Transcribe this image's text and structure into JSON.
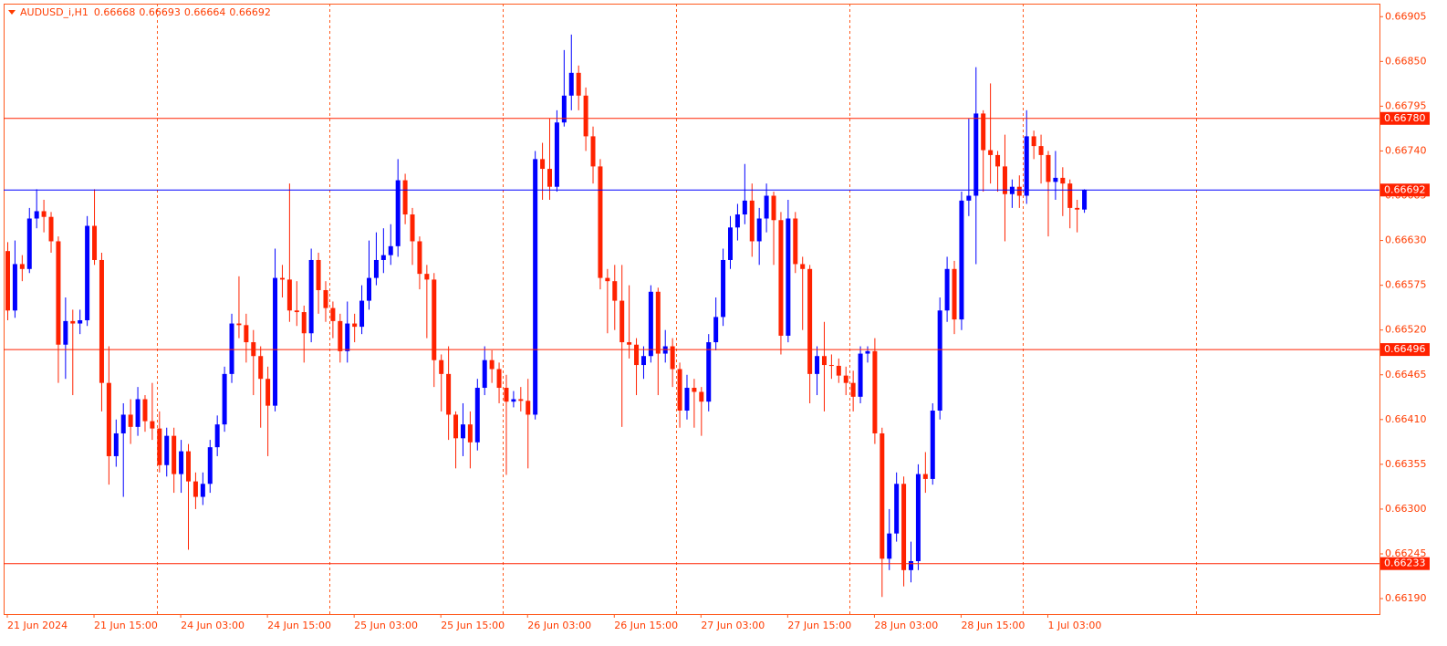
{
  "chart_data": {
    "type": "candlestick",
    "title": "AUDUSD_i,H1",
    "categories": [
      "21 Jun 2024",
      null,
      null,
      null,
      null,
      null,
      null,
      null,
      null,
      null,
      null,
      null,
      "21 Jun 15:00",
      null,
      null,
      null,
      null,
      null,
      null,
      null,
      null,
      null,
      null,
      null,
      "24 Jun 03:00",
      null,
      null,
      null,
      null,
      null,
      null,
      null,
      null,
      null,
      null,
      null,
      "24 Jun 15:00",
      null,
      null,
      null,
      null,
      null,
      null,
      null,
      null,
      null,
      null,
      null,
      "25 Jun 03:00",
      null,
      null,
      null,
      null,
      null,
      null,
      null,
      null,
      null,
      null,
      null,
      "25 Jun 15:00",
      null,
      null,
      null,
      null,
      null,
      null,
      null,
      null,
      null,
      null,
      null,
      "26 Jun 03:00",
      null,
      null,
      null,
      null,
      null,
      null,
      null,
      null,
      null,
      null,
      null,
      "26 Jun 15:00",
      null,
      null,
      null,
      null,
      null,
      null,
      null,
      null,
      null,
      null,
      null,
      "27 Jun 03:00",
      null,
      null,
      null,
      null,
      null,
      null,
      null,
      null,
      null,
      null,
      null,
      "27 Jun 15:00",
      null,
      null,
      null,
      null,
      null,
      null,
      null,
      null,
      null,
      null,
      null,
      "28 Jun 03:00",
      null,
      null,
      null,
      null,
      null,
      null,
      null,
      null,
      null,
      null,
      null,
      "28 Jun 15:00",
      null,
      null,
      null,
      null,
      null,
      null,
      null,
      null,
      null,
      null,
      null,
      "1 Jul 03:00",
      null,
      null,
      null,
      null,
      null
    ],
    "open": [
      0.66617,
      0.66544,
      0.66601,
      0.66595,
      0.66657,
      0.66666,
      0.66659,
      0.66629,
      0.66502,
      0.66531,
      0.66528,
      0.66532,
      0.66648,
      0.66606,
      0.66455,
      0.66365,
      0.66393,
      0.66416,
      0.66401,
      0.66435,
      0.66408,
      0.66399,
      0.66354,
      0.6639,
      0.66343,
      0.66371,
      0.66334,
      0.66315,
      0.66331,
      0.66376,
      0.66404,
      0.66466,
      0.66528,
      0.66526,
      0.66505,
      0.66488,
      0.6646,
      0.66427,
      0.66584,
      0.66582,
      0.66544,
      0.66542,
      0.66516,
      0.66606,
      0.66569,
      0.66547,
      0.66531,
      0.66494,
      0.66528,
      0.66524,
      0.66556,
      0.66584,
      0.66606,
      0.66612,
      0.66623,
      0.66704,
      0.66662,
      0.66629,
      0.66589,
      0.66582,
      0.66483,
      0.66466,
      0.66416,
      0.66387,
      0.66404,
      0.66382,
      0.66449,
      0.66483,
      0.66472,
      0.66449,
      0.66432,
      0.66435,
      0.66433,
      0.66416,
      0.6673,
      0.66718,
      0.66696,
      0.66775,
      0.66808,
      0.66836,
      0.66808,
      0.66758,
      0.66721,
      0.66584,
      0.6658,
      0.66556,
      0.66505,
      0.66502,
      0.66477,
      0.66488,
      0.66567,
      0.66491,
      0.665,
      0.66472,
      0.66421,
      0.66449,
      0.66444,
      0.66432,
      0.66505,
      0.66536,
      0.66606,
      0.66646,
      0.66662,
      0.66679,
      0.66629,
      0.66657,
      0.66685,
      0.66655,
      0.66513,
      0.66657,
      0.66601,
      0.66595,
      0.66466,
      0.66488,
      0.66477,
      0.66476,
      0.66464,
      0.66455,
      0.66438,
      0.66491,
      0.66494,
      0.66393,
      0.66239,
      0.6627,
      0.66331,
      0.66225,
      0.66236,
      0.66343,
      0.66337,
      0.66421,
      0.66544,
      0.66595,
      0.66533,
      0.66679,
      0.66685,
      0.66786,
      0.66741,
      0.66735,
      0.66721,
      0.66687,
      0.66696,
      0.66685,
      0.66758,
      0.66746,
      0.66735,
      0.66702,
      0.66707,
      0.667,
      0.6667,
      0.66668
    ],
    "high": [
      0.66628,
      0.6663,
      0.66612,
      0.6667,
      0.66693,
      0.6668,
      0.66665,
      0.66635,
      0.6656,
      0.66545,
      0.66545,
      0.6666,
      0.66693,
      0.66615,
      0.665,
      0.6641,
      0.6643,
      0.66435,
      0.6645,
      0.6644,
      0.66455,
      0.6642,
      0.664,
      0.664,
      0.66385,
      0.6638,
      0.66345,
      0.66345,
      0.66385,
      0.66415,
      0.66475,
      0.6654,
      0.66586,
      0.6654,
      0.6652,
      0.665,
      0.66475,
      0.6662,
      0.666,
      0.667,
      0.6658,
      0.6655,
      0.6662,
      0.66615,
      0.6658,
      0.66555,
      0.6654,
      0.66555,
      0.6654,
      0.66575,
      0.6663,
      0.6664,
      0.66645,
      0.6665,
      0.6673,
      0.66712,
      0.6667,
      0.66635,
      0.666,
      0.6659,
      0.6649,
      0.665,
      0.6642,
      0.6643,
      0.6642,
      0.6646,
      0.665,
      0.66495,
      0.6648,
      0.66465,
      0.66445,
      0.6645,
      0.6646,
      0.6674,
      0.6675,
      0.6678,
      0.6679,
      0.66864,
      0.66883,
      0.66845,
      0.66818,
      0.6677,
      0.6673,
      0.66595,
      0.666,
      0.666,
      0.66575,
      0.6651,
      0.665,
      0.66575,
      0.66572,
      0.6652,
      0.6651,
      0.6648,
      0.66465,
      0.6646,
      0.6645,
      0.66515,
      0.6656,
      0.6662,
      0.6666,
      0.66675,
      0.66724,
      0.667,
      0.6667,
      0.667,
      0.6669,
      0.66665,
      0.6668,
      0.66665,
      0.6661,
      0.666,
      0.665,
      0.6653,
      0.6649,
      0.66485,
      0.66475,
      0.6647,
      0.665,
      0.665,
      0.6651,
      0.664,
      0.663,
      0.66345,
      0.6634,
      0.6626,
      0.66355,
      0.6637,
      0.6643,
      0.6656,
      0.6661,
      0.66605,
      0.6669,
      0.6678,
      0.66843,
      0.6679,
      0.66823,
      0.6674,
      0.6676,
      0.66705,
      0.6671,
      0.6679,
      0.66765,
      0.6676,
      0.6674,
      0.6674,
      0.6672,
      0.66705,
      0.6668,
      0.66693
    ],
    "low": [
      0.66532,
      0.66535,
      0.6658,
      0.6659,
      0.66645,
      0.6664,
      0.66615,
      0.66455,
      0.6646,
      0.6644,
      0.66515,
      0.66525,
      0.666,
      0.6642,
      0.6633,
      0.66352,
      0.66315,
      0.6638,
      0.6639,
      0.66395,
      0.66385,
      0.66345,
      0.6634,
      0.6632,
      0.6632,
      0.6625,
      0.663,
      0.66305,
      0.6632,
      0.66365,
      0.66395,
      0.66455,
      0.6651,
      0.6648,
      0.6644,
      0.664,
      0.66365,
      0.6642,
      0.6656,
      0.6653,
      0.66525,
      0.6648,
      0.66505,
      0.6654,
      0.6653,
      0.6651,
      0.6648,
      0.6648,
      0.66505,
      0.66515,
      0.66545,
      0.66575,
      0.6659,
      0.666,
      0.6661,
      0.6665,
      0.666,
      0.6657,
      0.6651,
      0.6645,
      0.6642,
      0.66385,
      0.6635,
      0.66365,
      0.6635,
      0.66372,
      0.6644,
      0.66455,
      0.6643,
      0.66342,
      0.66425,
      0.6642,
      0.6635,
      0.6641,
      0.6668,
      0.6668,
      0.6669,
      0.6677,
      0.6679,
      0.6679,
      0.6674,
      0.667,
      0.6657,
      0.66516,
      0.6652,
      0.66401,
      0.66485,
      0.6644,
      0.6646,
      0.6648,
      0.6644,
      0.6648,
      0.6645,
      0.664,
      0.6641,
      0.664,
      0.6639,
      0.6642,
      0.66495,
      0.66525,
      0.66595,
      0.6663,
      0.6665,
      0.6661,
      0.666,
      0.6664,
      0.666,
      0.6649,
      0.66505,
      0.6659,
      0.6652,
      0.6643,
      0.6644,
      0.6642,
      0.6646,
      0.66455,
      0.6644,
      0.6642,
      0.6643,
      0.6648,
      0.6638,
      0.66192,
      0.66225,
      0.6626,
      0.66205,
      0.6621,
      0.66225,
      0.6632,
      0.6633,
      0.6641,
      0.6653,
      0.66515,
      0.6652,
      0.6666,
      0.66601,
      0.6669,
      0.667,
      0.6669,
      0.66629,
      0.6667,
      0.6667,
      0.66675,
      0.6673,
      0.667,
      0.66635,
      0.6668,
      0.6666,
      0.66645,
      0.6664,
      0.66664
    ],
    "close": [
      0.66544,
      0.66601,
      0.66595,
      0.66657,
      0.66666,
      0.66659,
      0.66629,
      0.66502,
      0.66531,
      0.66528,
      0.66532,
      0.66648,
      0.66606,
      0.66455,
      0.66365,
      0.66393,
      0.66416,
      0.66401,
      0.66435,
      0.66408,
      0.66399,
      0.66354,
      0.6639,
      0.66343,
      0.66371,
      0.66334,
      0.66315,
      0.66331,
      0.66376,
      0.66404,
      0.66466,
      0.66528,
      0.66526,
      0.66505,
      0.66488,
      0.6646,
      0.66427,
      0.66584,
      0.66582,
      0.66544,
      0.66542,
      0.66516,
      0.66606,
      0.66569,
      0.66547,
      0.66531,
      0.66494,
      0.66528,
      0.66524,
      0.66556,
      0.66584,
      0.66606,
      0.66612,
      0.66623,
      0.66704,
      0.66662,
      0.66629,
      0.66589,
      0.66582,
      0.66483,
      0.66466,
      0.66416,
      0.66387,
      0.66404,
      0.66382,
      0.66449,
      0.66483,
      0.66472,
      0.66449,
      0.66432,
      0.66435,
      0.66433,
      0.66416,
      0.6673,
      0.66718,
      0.66696,
      0.66775,
      0.66808,
      0.66836,
      0.66808,
      0.66758,
      0.66721,
      0.66584,
      0.6658,
      0.66556,
      0.66505,
      0.66502,
      0.66477,
      0.66488,
      0.66567,
      0.66491,
      0.665,
      0.66472,
      0.66421,
      0.66449,
      0.66444,
      0.66432,
      0.66505,
      0.66536,
      0.66606,
      0.66646,
      0.66662,
      0.66679,
      0.66629,
      0.66657,
      0.66685,
      0.66655,
      0.66513,
      0.66657,
      0.66601,
      0.66595,
      0.66466,
      0.66488,
      0.66477,
      0.66476,
      0.66464,
      0.66455,
      0.66438,
      0.66491,
      0.66494,
      0.66393,
      0.66239,
      0.6627,
      0.66331,
      0.66225,
      0.66236,
      0.66343,
      0.66337,
      0.66421,
      0.66544,
      0.66595,
      0.66533,
      0.66679,
      0.66685,
      0.66786,
      0.66741,
      0.66735,
      0.66721,
      0.66687,
      0.66696,
      0.66685,
      0.66758,
      0.66746,
      0.66735,
      0.66702,
      0.66707,
      0.667,
      0.6667,
      0.66668,
      0.66692
    ],
    "up_color": "#0000ff",
    "down_color": "#ff2200",
    "price_line_color": "#0000ff",
    "level_color": "#ff2200",
    "ylim": [
      0.66171,
      0.66921
    ],
    "yticks": [
      0.66905,
      {
        "value": 0.6685,
        "label": "0.66850"
      },
      0.66795,
      {
        "value": 0.6674,
        "label": "0.66740"
      },
      0.66685,
      {
        "value": 0.6663,
        "label": "0.66630"
      },
      0.66575,
      {
        "value": 0.6652,
        "label": "0.66520"
      },
      0.66465,
      {
        "value": 0.6641,
        "label": "0.66410"
      },
      0.66355,
      {
        "value": 0.663,
        "label": "0.66300"
      },
      0.66245,
      {
        "value": 0.6619,
        "label": "0.66190"
      }
    ],
    "levels": [
      {
        "value": 0.6678,
        "label": "0.66780"
      },
      0.66496,
      0.66233
    ]
  }
}
